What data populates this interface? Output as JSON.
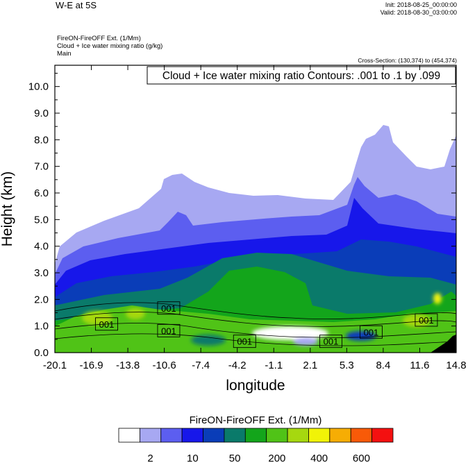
{
  "header": {
    "title": "W-E at 5S",
    "init": "Init: 2018-08-25_00:00:00",
    "valid": "Valid: 2018-08-30_03:00:00",
    "meta_lines": [
      "FireON-FireOFF Ext.   (1/Mm)",
      "Cloud + Ice water mixing ratio   (g/kg)",
      "Main"
    ],
    "cross_section": "Cross-Section: (130,374) to (454,374)"
  },
  "chart_data": {
    "type": "heatmap",
    "contour_label": "Cloud + Ice water mixing ratio Contours: .001 to .1 by .099",
    "xlabel": "longitude",
    "ylabel": "Height (km)",
    "xticks": [
      "-20.1",
      "-16.9",
      "-13.8",
      "-10.6",
      "-7.4",
      "-4.2",
      "-1.1",
      "2.1",
      "5.3",
      "8.4",
      "11.6",
      "14.8"
    ],
    "xlim": [
      -20.1,
      14.8
    ],
    "yticks": [
      "0.0",
      "1.0",
      "2.0",
      "3.0",
      "4.0",
      "5.0",
      "6.0",
      "7.0",
      "8.0",
      "9.0",
      "10.0"
    ],
    "ylim": [
      0,
      10.8
    ],
    "contour_tags": [
      {
        "text": "001",
        "x": -10.2,
        "y": 1.65
      },
      {
        "text": "001",
        "x": -15.6,
        "y": 1.05
      },
      {
        "text": "001",
        "x": -10.2,
        "y": 0.8
      },
      {
        "text": "001",
        "x": -3.6,
        "y": 0.4
      },
      {
        "text": "001",
        "x": 3.9,
        "y": 0.4
      },
      {
        "text": "001",
        "x": 7.4,
        "y": 0.75
      },
      {
        "text": "001",
        "x": 12.2,
        "y": 1.2
      }
    ],
    "colorbar": {
      "title": "FireON-FireOFF Ext.  (1/Mm)",
      "colors": [
        "#ffffff",
        "#a7a8f2",
        "#5c5ef0",
        "#1717ea",
        "#0a3db8",
        "#0a7a6a",
        "#13a51b",
        "#50c317",
        "#a6d80f",
        "#f1f307",
        "#f6ad04",
        "#f85a08",
        "#f41010"
      ],
      "labels": [
        {
          "text": "2",
          "index": 1
        },
        {
          "text": "10",
          "index": 3
        },
        {
          "text": "50",
          "index": 5
        },
        {
          "text": "200",
          "index": 7
        },
        {
          "text": "400",
          "index": 9
        },
        {
          "text": "600",
          "index": 11
        }
      ]
    }
  }
}
